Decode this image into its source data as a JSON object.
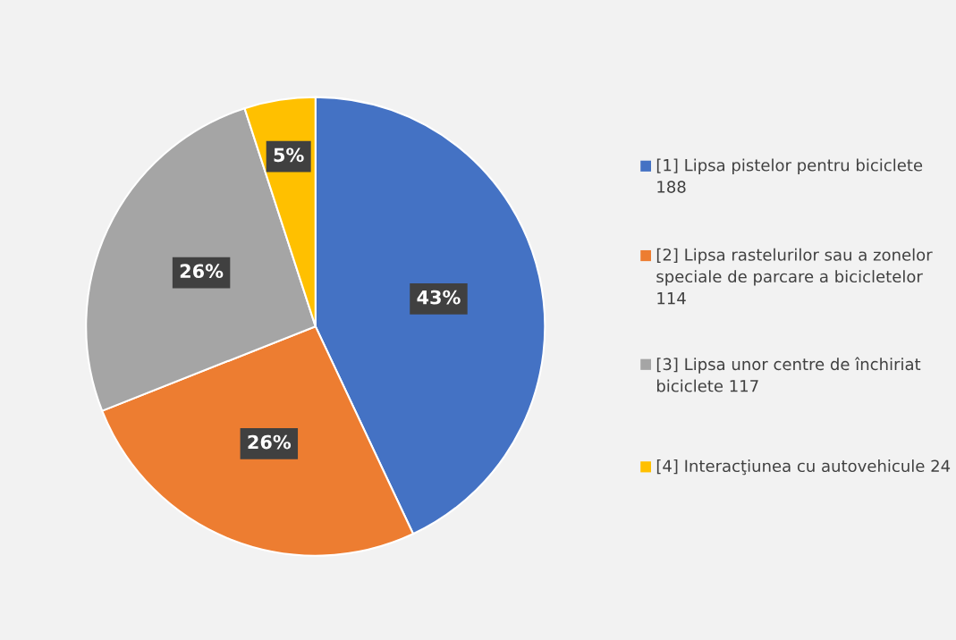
{
  "chart_data": {
    "type": "pie",
    "categories": [
      "[1] Lipsa pistelor pentru biciclete 188",
      "[2] Lipsa rastelurilor sau a zonelor speciale de parcare a bicicletelor 114",
      "[3] Lipsa unor centre de închiriat biciclete 117",
      "[4] Interacţiunea cu autovehicule 24"
    ],
    "values": [
      43,
      26,
      26,
      5
    ],
    "colors": [
      "#4472c4",
      "#ed7d31",
      "#a5a5a5",
      "#ffc000"
    ],
    "value_labels": [
      "43%",
      "26%",
      "26%",
      "5%"
    ],
    "legend": "right"
  }
}
